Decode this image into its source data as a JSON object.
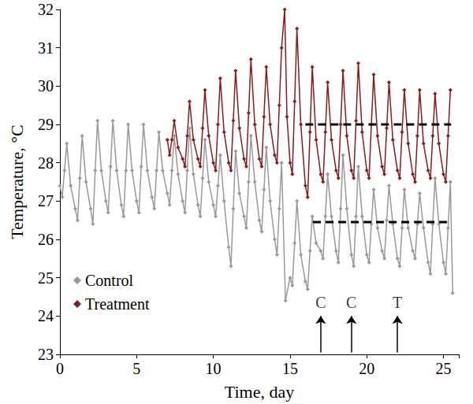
{
  "chart_data": {
    "type": "line",
    "x_label": "Time, day",
    "y_label": "Temperature, °C",
    "xlim": [
      0,
      26
    ],
    "xticks": [
      0,
      5,
      10,
      15,
      20,
      25
    ],
    "ylim": [
      23,
      32
    ],
    "yticks": [
      23,
      24,
      25,
      26,
      27,
      28,
      29,
      30,
      31,
      32
    ],
    "grid": false,
    "legend": "lower left",
    "series": [
      {
        "name": "Control",
        "color": "#999999",
        "marker": "diamond",
        "x": [
          0,
          0.15,
          0.3,
          0.45,
          0.7,
          1,
          1.15,
          1.3,
          1.45,
          1.7,
          2,
          2.15,
          2.3,
          2.45,
          2.7,
          3,
          3.15,
          3.3,
          3.45,
          3.7,
          4,
          4.15,
          4.3,
          4.45,
          4.7,
          5,
          5.15,
          5.3,
          5.45,
          5.7,
          6,
          6.15,
          6.3,
          6.45,
          6.7,
          7,
          7.15,
          7.3,
          7.45,
          7.7,
          8,
          8.15,
          8.3,
          8.45,
          8.7,
          9,
          9.15,
          9.3,
          9.45,
          9.7,
          10,
          10.15,
          10.3,
          10.45,
          10.7,
          11,
          11.15,
          11.3,
          11.45,
          11.7,
          12,
          12.15,
          12.3,
          12.45,
          12.7,
          13,
          13.15,
          13.3,
          13.45,
          13.7,
          14,
          14.15,
          14.3,
          14.45,
          14.7,
          15,
          15.15,
          15.3,
          15.45,
          15.7,
          16,
          16.15,
          16.3,
          16.45,
          16.7,
          17,
          17.15,
          17.3,
          17.45,
          17.7,
          18,
          18.15,
          18.3,
          18.45,
          18.7,
          19,
          19.15,
          19.3,
          19.45,
          19.7,
          20,
          20.15,
          20.3,
          20.45,
          20.7,
          21,
          21.15,
          21.3,
          21.45,
          21.7,
          22,
          22.15,
          22.3,
          22.45,
          22.7,
          23,
          23.15,
          23.3,
          23.45,
          23.7,
          24,
          24.15,
          24.3,
          24.45,
          24.7,
          25,
          25.15,
          25.3,
          25.45,
          25.6
        ],
        "values": [
          27.4,
          27.1,
          27.8,
          28.5,
          27.4,
          26.8,
          26.5,
          27.6,
          28.7,
          27.5,
          26.8,
          26.4,
          27.8,
          29.1,
          27.8,
          27.0,
          26.7,
          27.9,
          29.1,
          27.8,
          26.9,
          26.6,
          27.8,
          29.0,
          27.8,
          27.0,
          26.7,
          27.9,
          29.0,
          27.8,
          27.1,
          26.8,
          27.8,
          28.8,
          27.8,
          27.2,
          26.9,
          27.8,
          28.7,
          27.7,
          27.0,
          26.7,
          27.8,
          28.9,
          27.7,
          26.9,
          26.6,
          27.6,
          28.6,
          27.5,
          26.9,
          26.6,
          27.4,
          28.2,
          27.0,
          25.8,
          25.3,
          26.8,
          28.3,
          27.2,
          26.6,
          26.3,
          27.5,
          28.7,
          27.5,
          26.5,
          26.2,
          27.3,
          28.4,
          27.0,
          26.0,
          25.6,
          26.8,
          28.0,
          24.4,
          25.0,
          24.8,
          25.9,
          27.0,
          25.6,
          24.9,
          24.7,
          25.7,
          26.6,
          25.9,
          25.7,
          25.5,
          26.6,
          27.7,
          26.6,
          25.7,
          25.4,
          26.8,
          28.2,
          26.8,
          25.6,
          25.3,
          26.6,
          27.9,
          26.6,
          25.6,
          25.4,
          26.4,
          27.3,
          26.3,
          25.7,
          25.5,
          26.5,
          27.4,
          26.4,
          25.5,
          25.3,
          26.3,
          27.3,
          26.3,
          25.7,
          25.5,
          26.4,
          27.2,
          26.3,
          25.4,
          25.1,
          26.4,
          27.6,
          26.4,
          25.4,
          25.1,
          26.3,
          27.5,
          24.6
        ]
      },
      {
        "name": "Treatment",
        "color": "#8b1a1a",
        "marker": "diamond",
        "x": [
          7,
          7.15,
          7.3,
          7.45,
          7.7,
          8,
          8.15,
          8.3,
          8.45,
          8.7,
          9,
          9.15,
          9.3,
          9.45,
          9.7,
          10,
          10.15,
          10.3,
          10.45,
          10.7,
          11,
          11.15,
          11.3,
          11.45,
          11.7,
          12,
          12.15,
          12.3,
          12.45,
          12.7,
          13,
          13.15,
          13.3,
          13.45,
          13.7,
          14,
          14.15,
          14.3,
          14.45,
          14.65,
          14.8,
          15,
          15.15,
          15.3,
          15.45,
          15.7,
          16,
          16.15,
          16.3,
          16.45,
          16.7,
          17,
          17.15,
          17.3,
          17.45,
          17.7,
          18,
          18.15,
          18.3,
          18.45,
          18.7,
          19,
          19.15,
          19.3,
          19.45,
          19.7,
          20,
          20.15,
          20.3,
          20.45,
          20.7,
          21,
          21.15,
          21.3,
          21.45,
          21.7,
          22,
          22.15,
          22.3,
          22.45,
          22.7,
          23,
          23.15,
          23.3,
          23.45,
          23.7,
          24,
          24.15,
          24.3,
          24.45,
          24.7,
          25,
          25.15,
          25.3,
          25.45
        ],
        "values": [
          28.6,
          28.2,
          28.6,
          29.1,
          28.4,
          28.1,
          27.9,
          28.7,
          29.6,
          28.6,
          28.1,
          27.9,
          28.9,
          29.9,
          28.7,
          28.0,
          27.8,
          29.0,
          30.2,
          28.8,
          28.0,
          27.8,
          29.1,
          30.4,
          28.9,
          28.1,
          27.9,
          29.3,
          30.7,
          29.0,
          28.1,
          27.9,
          29.2,
          30.5,
          29.0,
          28.2,
          28.0,
          29.5,
          31.0,
          32.0,
          29.2,
          28.0,
          27.7,
          29.6,
          31.5,
          29.0,
          27.4,
          27.1,
          28.8,
          30.5,
          28.6,
          27.7,
          27.5,
          28.8,
          30.1,
          28.6,
          27.8,
          27.6,
          29.0,
          30.4,
          28.7,
          27.8,
          27.6,
          29.1,
          30.6,
          28.8,
          27.8,
          27.6,
          29.0,
          30.3,
          28.7,
          27.9,
          27.7,
          28.9,
          30.1,
          28.6,
          27.8,
          27.6,
          28.8,
          29.9,
          28.5,
          27.7,
          27.5,
          28.7,
          29.9,
          28.5,
          27.8,
          27.6,
          28.7,
          29.8,
          28.5,
          27.7,
          27.5,
          28.7,
          29.9
        ]
      }
    ],
    "reference_lines": [
      {
        "y": 29,
        "x": [
          16,
          25.5
        ],
        "color": "#000000",
        "line_style": "dashed"
      },
      {
        "y": 26.45,
        "x": [
          16.5,
          25.5
        ],
        "color": "#000000",
        "line_style": "dashed"
      }
    ],
    "annotations": [
      {
        "text": "C",
        "x": 17,
        "y": 24.35,
        "arrow": [
          23.05,
          24.0
        ]
      },
      {
        "text": "C",
        "x": 19,
        "y": 24.35,
        "arrow": [
          23.05,
          24.0
        ]
      },
      {
        "text": "T",
        "x": 22,
        "y": 24.35,
        "arrow": [
          23.05,
          24.0
        ]
      }
    ]
  }
}
